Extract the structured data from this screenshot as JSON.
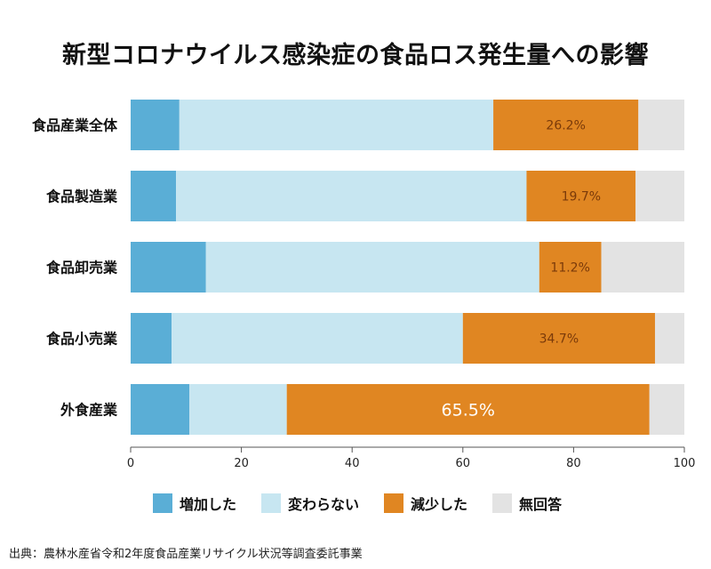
{
  "chart_data": {
    "type": "bar",
    "orientation": "horizontal",
    "stacked": true,
    "title": "新型コロナウイルス感染症の食品ロス発生量への影響",
    "categories": [
      "食品産業全体",
      "食品製造業",
      "食品卸売業",
      "食品小売業",
      "外食産業"
    ],
    "series": [
      {
        "name": "増加した",
        "color": "#5aaed6",
        "values": [
          8.8,
          8.2,
          13.6,
          7.4,
          10.6
        ]
      },
      {
        "name": "変わらない",
        "color": "#c7e6f1",
        "values": [
          56.7,
          63.3,
          60.2,
          52.6,
          17.6
        ]
      },
      {
        "name": "減少した",
        "color": "#e08622",
        "values": [
          26.2,
          19.7,
          11.2,
          34.7,
          65.5
        ]
      },
      {
        "name": "無回答",
        "color": "#e3e3e3",
        "values": [
          8.3,
          8.8,
          15.0,
          5.3,
          6.3
        ]
      }
    ],
    "data_labels": [
      "26.2%",
      "19.7%",
      "11.2%",
      "34.7%",
      "65.5%"
    ],
    "xlim": [
      0,
      100
    ],
    "xticks": [
      "0",
      "20",
      "40",
      "60",
      "80",
      "100"
    ],
    "grid": false,
    "legend_position": "bottom"
  },
  "source": "出典：農林水産省令和2年度食品産業リサイクル状況等調査委託事業"
}
